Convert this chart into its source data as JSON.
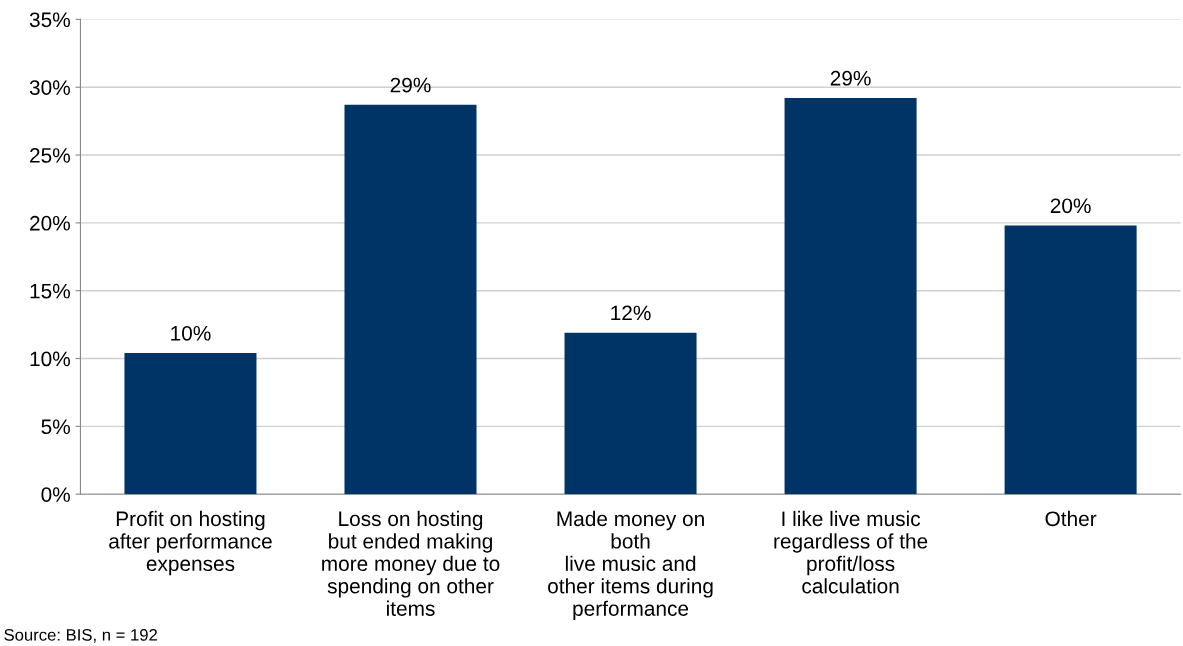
{
  "chart_data": {
    "type": "bar",
    "categories": [
      "Profit on hosting\nafter performance\nexpenses",
      "Loss on hosting\nbut ended making\nmore money due to\nspending on other\nitems",
      "Made money on\nboth\nlive music and\nother items during\nperformance",
      "I like live music\nregardless of the\nprofit/loss\ncalculation",
      "Other"
    ],
    "values": [
      10.4,
      28.7,
      11.9,
      29.2,
      19.8
    ],
    "value_labels": [
      "10%",
      "29%",
      "12%",
      "29%",
      "20%"
    ],
    "color": "#003366",
    "ylim": [
      0,
      35
    ],
    "yticks": [
      {
        "value": 0,
        "label": "0%"
      },
      {
        "value": 5,
        "label": "5%"
      },
      {
        "value": 10,
        "label": "10%"
      },
      {
        "value": 15,
        "label": "15%"
      },
      {
        "value": 20,
        "label": "20%"
      },
      {
        "value": 25,
        "label": "25%"
      },
      {
        "value": 30,
        "label": "30%"
      },
      {
        "value": 35,
        "label": "35%"
      }
    ],
    "grid": "y",
    "annotations": [
      "Source: BIS, n = 192"
    ]
  }
}
